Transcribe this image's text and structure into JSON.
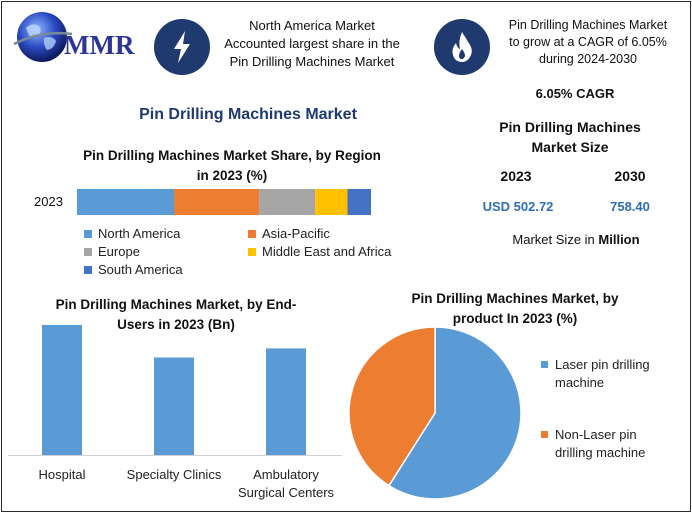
{
  "header": {
    "logo_text": "MMR",
    "highlight_left": [
      "North America Market",
      "Accounted largest share in the",
      "Pin Drilling Machines Market"
    ],
    "highlight_right": [
      "Pin Drilling Machines Market",
      "to grow at a CAGR of 6.05%",
      "during 2024-2030"
    ],
    "left_icon": "lightning-icon",
    "right_icon": "flame-icon"
  },
  "main_title": "Pin Drilling Machines Market",
  "colors": {
    "navy": "#1f3a6e",
    "north_america": "#5b9bd5",
    "asia_pacific": "#ed7d31",
    "europe": "#a5a5a5",
    "middle_east_africa": "#ffc000",
    "south_america": "#4472c4"
  },
  "market_size": {
    "cagr": "6.05% CAGR",
    "title_line1": "Pin Drilling Machines",
    "title_line2": "Market Size",
    "year_a": "2023",
    "year_b": "2030",
    "value_a": "USD 502.72",
    "value_b": "758.40",
    "unit_prefix": "Market Size in ",
    "unit_bold": "Million"
  },
  "chart_data": [
    {
      "type": "bar",
      "orientation": "horizontal-stacked",
      "title_line1": "Pin Drilling Machines Market Share, by Region",
      "title_line2": "in 2023 (%)",
      "categories": [
        "2023"
      ],
      "series": [
        {
          "name": "North America",
          "values": [
            33
          ]
        },
        {
          "name": "Asia-Pacific",
          "values": [
            29
          ]
        },
        {
          "name": "Europe",
          "values": [
            19
          ]
        },
        {
          "name": "Middle East and Africa",
          "values": [
            11
          ]
        },
        {
          "name": "South America",
          "values": [
            8
          ]
        }
      ],
      "legend": "bottom"
    },
    {
      "type": "bar",
      "title_line1": "Pin Drilling Machines Market, by End-",
      "title_line2": "Users in 2023 (Bn)",
      "categories": [
        "Hospital",
        "Specialty Clinics",
        "Ambulatory Surgical Centers"
      ],
      "category_lines": [
        [
          "Hospital"
        ],
        [
          "Specialty Clinics"
        ],
        [
          "Ambulatory",
          "Surgical Centers"
        ]
      ],
      "values": [
        100,
        75,
        82
      ],
      "ylim": [
        0,
        100
      ]
    },
    {
      "type": "pie",
      "title_line1": "Pin Drilling Machines Market, by",
      "title_line2": "product In 2023 (%)",
      "series": [
        {
          "name": "Laser pin drilling machine",
          "name_lines": [
            "Laser pin drilling",
            "machine"
          ],
          "value": 59
        },
        {
          "name": "Non-Laser pin drilling machine",
          "name_lines": [
            "Non-Laser pin",
            "drilling machine"
          ],
          "value": 41
        }
      ],
      "legend": "right"
    }
  ]
}
